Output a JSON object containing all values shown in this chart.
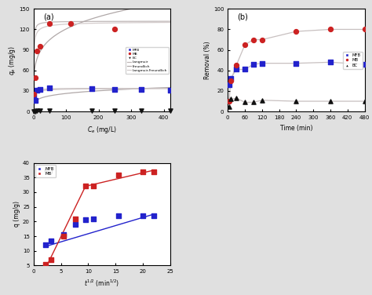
{
  "panel_a": {
    "title": "(a)",
    "xlabel": "C_e (mg/L)",
    "ylabel": "q_e (mg/g)",
    "xlim": [
      0,
      420
    ],
    "ylim": [
      0,
      150
    ],
    "xticks": [
      0,
      100,
      200,
      300,
      400
    ],
    "yticks": [
      0,
      30,
      60,
      90,
      120,
      150
    ],
    "MFB_x": [
      2,
      5,
      10,
      20,
      50,
      180,
      250,
      330,
      420
    ],
    "MFB_y": [
      22,
      16,
      31,
      32,
      35,
      33,
      32,
      32,
      31
    ],
    "MB_x": [
      2,
      5,
      10,
      20,
      50,
      115,
      250
    ],
    "MB_y": [
      25,
      50,
      88,
      95,
      128,
      128,
      121
    ],
    "BC_x": [
      2,
      5,
      10,
      20,
      50,
      180,
      250,
      330,
      420
    ],
    "BC_y": [
      0.5,
      0.5,
      1,
      1,
      1.5,
      1.5,
      1.5,
      1.5,
      1.5
    ],
    "MFB_color": "#2222cc",
    "MB_color": "#cc2222",
    "BC_color": "#111111",
    "line_color1": "#c0b8b8",
    "line_color2": "#b0a8a8",
    "line_color3": "#d4cccc",
    "qmax_mfb": 34.0,
    "K_mfb": 0.6,
    "qmax_mb": 132.0,
    "K_mb": 1.8
  },
  "panel_b": {
    "title": "(b)",
    "xlabel": "Time (min)",
    "ylabel": "Removal (%)",
    "xlim": [
      0,
      480
    ],
    "ylim": [
      0,
      100
    ],
    "xticks": [
      0,
      60,
      120,
      180,
      240,
      300,
      360,
      420,
      480
    ],
    "yticks": [
      0,
      20,
      40,
      60,
      80,
      100
    ],
    "MFB_x": [
      5,
      10,
      30,
      60,
      90,
      120,
      240,
      360,
      480
    ],
    "MFB_y": [
      26,
      32,
      41,
      41,
      46,
      47,
      47,
      48,
      46
    ],
    "MB_x": [
      5,
      10,
      30,
      60,
      90,
      120,
      240,
      360,
      480
    ],
    "MB_y": [
      10,
      30,
      45,
      65,
      70,
      70,
      78,
      80,
      80
    ],
    "BC_x": [
      5,
      10,
      30,
      60,
      90,
      120,
      240,
      360,
      480
    ],
    "BC_y": [
      5,
      12,
      13,
      9,
      9,
      11,
      10,
      10,
      10
    ],
    "MFB_color": "#2222cc",
    "MB_color": "#cc2222",
    "BC_color": "#111111",
    "line_color": "#c8c0c0"
  },
  "panel_c": {
    "title": "(c)",
    "xlabel": "t^{0.5} (min^{0.5})",
    "ylabel": "q (mg/g)",
    "xlim": [
      0,
      25
    ],
    "ylim": [
      5,
      40
    ],
    "xticks": [
      0,
      5,
      10,
      15,
      20,
      25
    ],
    "yticks": [
      5,
      10,
      15,
      20,
      25,
      30,
      35,
      40
    ],
    "MFB_x": [
      2.2,
      3.2,
      5.5,
      7.7,
      9.5,
      10.9,
      15.5,
      20.0,
      22.0
    ],
    "MFB_y": [
      12,
      13.5,
      15.5,
      19,
      20.5,
      21,
      22,
      22,
      22
    ],
    "MB_x": [
      2.2,
      3.2,
      5.5,
      7.7,
      9.5,
      10.9,
      15.5,
      20.0,
      22.0
    ],
    "MB_y": [
      5.5,
      7,
      15,
      21,
      32,
      32,
      36,
      37,
      37
    ],
    "MFB_line_x": [
      2.2,
      22.0
    ],
    "MFB_line_y": [
      11.5,
      22.5
    ],
    "MB_line1_x": [
      2.2,
      9.5
    ],
    "MB_line1_y": [
      4.0,
      32.0
    ],
    "MB_line2_x": [
      9.5,
      22.0
    ],
    "MB_line2_y": [
      32.0,
      37.5
    ],
    "MFB_color": "#2222cc",
    "MB_color": "#cc2222"
  },
  "fig_bg": "#e0e0e0",
  "plot_bg": "#ffffff"
}
